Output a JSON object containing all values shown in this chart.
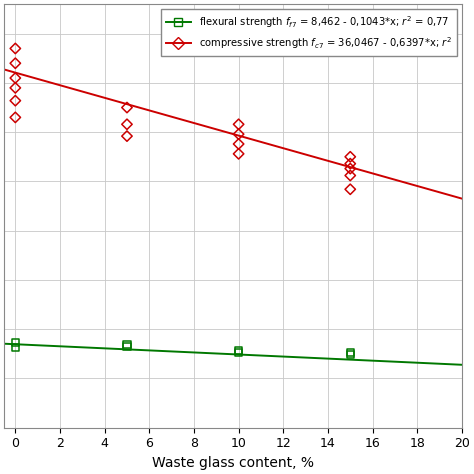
{
  "xlabel": "Waste glass content, %",
  "xlim": [
    -0.5,
    20
  ],
  "ylim": [
    0,
    43
  ],
  "xticks": [
    0,
    2,
    4,
    6,
    8,
    10,
    12,
    14,
    16,
    18,
    20
  ],
  "flexural_intercept": 8.462,
  "flexural_slope": -0.1043,
  "compressive_intercept": 36.0467,
  "compressive_slope": -0.6397,
  "flexural_data": {
    "x": [
      0,
      0,
      5,
      5,
      10,
      10,
      15,
      15
    ],
    "y": [
      8.65,
      8.15,
      8.45,
      8.25,
      7.85,
      7.65,
      7.65,
      7.45
    ]
  },
  "compressive_data": {
    "x": [
      0,
      0,
      0,
      0,
      0,
      0,
      5,
      5,
      5,
      10,
      10,
      10,
      10,
      15,
      15,
      15,
      15,
      15
    ],
    "y": [
      38.5,
      37.0,
      35.5,
      34.5,
      33.2,
      31.5,
      32.5,
      30.8,
      29.6,
      30.8,
      29.8,
      28.8,
      27.8,
      27.5,
      26.8,
      26.3,
      25.6,
      24.2
    ]
  },
  "flexural_color": "#007800",
  "compressive_color": "#cc0000",
  "bg_color": "#ffffff",
  "grid_color": "#c8c8c8",
  "legend_flexural": "flexural strength fₓ₇ = 8,462 - 0,1043*x; r² = 0,77",
  "legend_compressive": "compressive strength fₓ₇ = 36,0467 - 0,6397*x; r²"
}
